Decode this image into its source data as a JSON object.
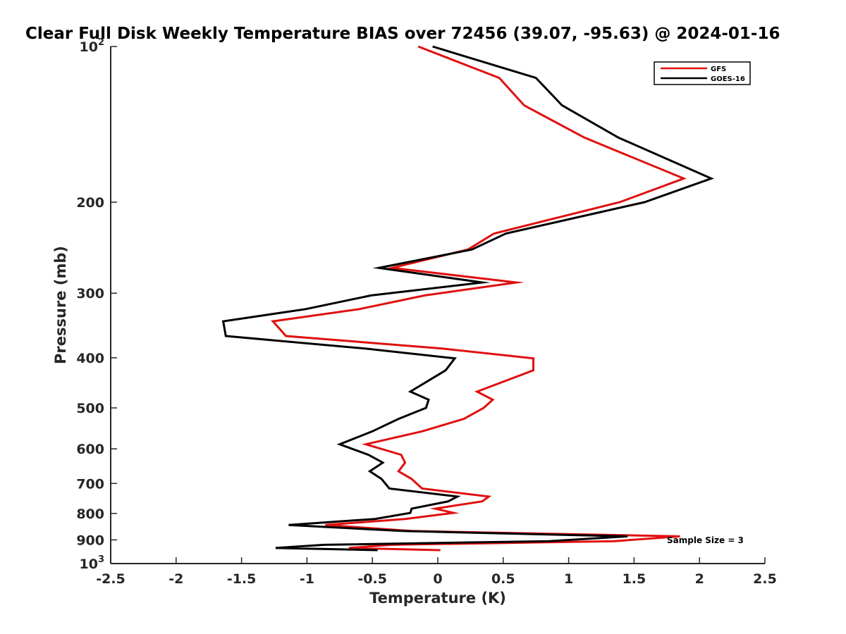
{
  "chart_data": {
    "type": "line",
    "title": "Clear Full Disk Weekly Temperature BIAS over 72456 (39.07, -95.63) @ 2024-01-16",
    "xlabel": "Temperature (K)",
    "ylabel": "Pressure (mb)",
    "xlim": [
      -2.5,
      2.5
    ],
    "ylim": [
      1000,
      100
    ],
    "y_scale": "log",
    "y_reversed": true,
    "grid": false,
    "legend_position": "top-right",
    "x_ticks": [
      {
        "value": -2.5,
        "label": "-2.5"
      },
      {
        "value": -2,
        "label": "-2"
      },
      {
        "value": -1.5,
        "label": "-1.5"
      },
      {
        "value": -1,
        "label": "-1"
      },
      {
        "value": -0.5,
        "label": "-0.5"
      },
      {
        "value": 0,
        "label": "0"
      },
      {
        "value": 0.5,
        "label": "0.5"
      },
      {
        "value": 1,
        "label": "1"
      },
      {
        "value": 1.5,
        "label": "1.5"
      },
      {
        "value": 2,
        "label": "2"
      },
      {
        "value": 2.5,
        "label": "2.5"
      }
    ],
    "y_ticks": [
      {
        "value": 100,
        "base": "10",
        "exp": "2"
      },
      {
        "value": 200,
        "label": "200"
      },
      {
        "value": 300,
        "label": "300"
      },
      {
        "value": 400,
        "label": "400"
      },
      {
        "value": 500,
        "label": "500"
      },
      {
        "value": 600,
        "label": "600"
      },
      {
        "value": 700,
        "label": "700"
      },
      {
        "value": 800,
        "label": "800"
      },
      {
        "value": 900,
        "label": "900"
      },
      {
        "value": 1000,
        "base": "10",
        "exp": "3"
      }
    ],
    "series": [
      {
        "name": "GFS",
        "color": "#e01010",
        "points": [
          [
            -0.15,
            100
          ],
          [
            0.47,
            115
          ],
          [
            0.66,
            130
          ],
          [
            1.12,
            150
          ],
          [
            1.88,
            180
          ],
          [
            1.39,
            200
          ],
          [
            0.43,
            230
          ],
          [
            0.23,
            247
          ],
          [
            -0.35,
            268
          ],
          [
            0.6,
            286
          ],
          [
            -0.1,
            303
          ],
          [
            -0.6,
            322
          ],
          [
            -1.26,
            340
          ],
          [
            -1.16,
            363
          ],
          [
            0.04,
            384
          ],
          [
            0.73,
            401
          ],
          [
            0.73,
            423
          ],
          [
            0.3,
            465
          ],
          [
            0.42,
            482
          ],
          [
            0.35,
            500
          ],
          [
            0.2,
            525
          ],
          [
            -0.12,
            555
          ],
          [
            -0.55,
            588
          ],
          [
            -0.28,
            616
          ],
          [
            -0.25,
            638
          ],
          [
            -0.3,
            663
          ],
          [
            -0.2,
            686
          ],
          [
            -0.12,
            716
          ],
          [
            0.39,
            742
          ],
          [
            0.34,
            758
          ],
          [
            -0.02,
            783
          ],
          [
            0.12,
            798
          ],
          [
            -0.25,
            820
          ],
          [
            -0.86,
            842
          ],
          [
            -0.2,
            865
          ],
          [
            1.85,
            886
          ],
          [
            1.35,
            905
          ],
          [
            -0.36,
            920
          ],
          [
            -0.68,
            933
          ],
          [
            0.02,
            942
          ]
        ]
      },
      {
        "name": "GOES-16",
        "color": "#000000",
        "points": [
          [
            -0.04,
            100
          ],
          [
            0.75,
            115
          ],
          [
            0.95,
            130
          ],
          [
            1.38,
            150
          ],
          [
            2.09,
            180
          ],
          [
            1.58,
            200
          ],
          [
            0.52,
            230
          ],
          [
            0.26,
            247
          ],
          [
            -0.45,
            268
          ],
          [
            0.34,
            286
          ],
          [
            -0.51,
            303
          ],
          [
            -1.01,
            322
          ],
          [
            -1.64,
            340
          ],
          [
            -1.62,
            363
          ],
          [
            -0.55,
            384
          ],
          [
            0.13,
            401
          ],
          [
            0.06,
            423
          ],
          [
            -0.21,
            465
          ],
          [
            -0.07,
            482
          ],
          [
            -0.09,
            500
          ],
          [
            -0.3,
            525
          ],
          [
            -0.5,
            555
          ],
          [
            -0.75,
            588
          ],
          [
            -0.53,
            616
          ],
          [
            -0.42,
            638
          ],
          [
            -0.52,
            663
          ],
          [
            -0.43,
            686
          ],
          [
            -0.37,
            716
          ],
          [
            0.15,
            742
          ],
          [
            0.08,
            758
          ],
          [
            -0.2,
            783
          ],
          [
            -0.21,
            798
          ],
          [
            -0.48,
            820
          ],
          [
            -1.14,
            842
          ],
          [
            -0.27,
            865
          ],
          [
            1.45,
            886
          ],
          [
            0.85,
            905
          ],
          [
            -0.87,
            920
          ],
          [
            -1.24,
            933
          ],
          [
            -0.46,
            942
          ]
        ]
      }
    ],
    "annotations": [
      {
        "text": "Sample Size = 3"
      }
    ]
  }
}
